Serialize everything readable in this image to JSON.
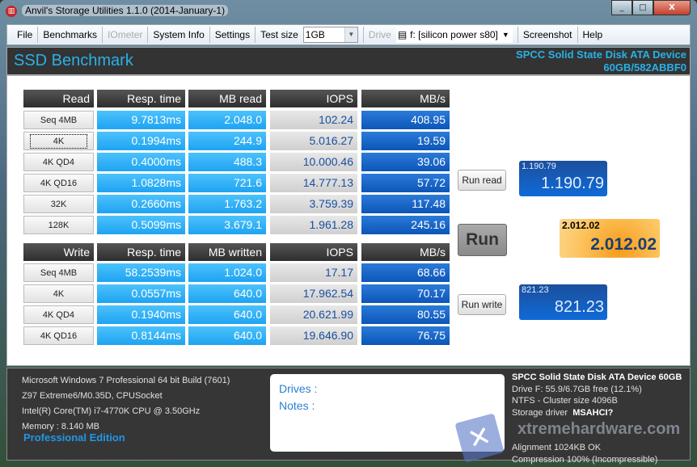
{
  "window": {
    "title": "Anvil's Storage Utilities 1.1.0 (2014-January-1)",
    "minimize": "_",
    "maximize": "□",
    "close": "X"
  },
  "menu": {
    "file": "File",
    "benchmarks": "Benchmarks",
    "iometer": "IOmeter",
    "system_info": "System Info",
    "settings": "Settings",
    "test_size_label": "Test size",
    "test_size_value": "1GB",
    "drive_label": "Drive",
    "drive_value": "f: [silicon power s80]",
    "screenshot": "Screenshot",
    "help": "Help"
  },
  "header": {
    "title": "SSD Benchmark",
    "device_line1": "SPCC Solid State Disk ATA Device",
    "device_line2": "60GB/582ABBF0"
  },
  "read": {
    "headers": [
      "Read",
      "Resp. time",
      "MB read",
      "IOPS",
      "MB/s"
    ],
    "rows": [
      [
        "Seq 4MB",
        "9.7813ms",
        "2.048.0",
        "102.24",
        "408.95"
      ],
      [
        "4K",
        "0.1994ms",
        "244.9",
        "5.016.27",
        "19.59"
      ],
      [
        "4K QD4",
        "0.4000ms",
        "488.3",
        "10.000.46",
        "39.06"
      ],
      [
        "4K QD16",
        "1.0828ms",
        "721.6",
        "14.777.13",
        "57.72"
      ],
      [
        "32K",
        "0.2660ms",
        "1.763.2",
        "3.759.39",
        "117.48"
      ],
      [
        "128K",
        "0.5099ms",
        "3.679.1",
        "1.961.28",
        "245.16"
      ]
    ]
  },
  "write": {
    "headers": [
      "Write",
      "Resp. time",
      "MB written",
      "IOPS",
      "MB/s"
    ],
    "rows": [
      [
        "Seq 4MB",
        "58.2539ms",
        "1.024.0",
        "17.17",
        "68.66"
      ],
      [
        "4K",
        "0.0557ms",
        "640.0",
        "17.962.54",
        "70.17"
      ],
      [
        "4K QD4",
        "0.1940ms",
        "640.0",
        "20.621.99",
        "80.55"
      ],
      [
        "4K QD16",
        "0.8144ms",
        "640.0",
        "19.646.90",
        "76.75"
      ]
    ]
  },
  "scores": {
    "run_read": "Run read",
    "run": "Run",
    "run_write": "Run write",
    "read_small": "1.190.79",
    "read_big": "1.190.79",
    "total_small": "2.012.02",
    "total_big": "2.012.02",
    "write_small": "821.23",
    "write_big": "821.23"
  },
  "footer": {
    "os": "Microsoft Windows 7 Professional  64 bit Build (7601)",
    "board": "Z97 Extreme6/M0.35D, CPUSocket",
    "cpu": "Intel(R) Core(TM) i7-4770K CPU @ 3.50GHz",
    "memory": "Memory : 8.140 MB",
    "edition": "Professional Edition",
    "drives_label": "Drives :",
    "notes_label": "Notes :",
    "device": "SPCC Solid State Disk ATA Device 60GB",
    "drive_free": "Drive F: 55.9/6.7GB free (12.1%)",
    "fs": "NTFS - Cluster size 4096B",
    "driver_label": "Storage driver",
    "driver_value": "MSAHCI?",
    "alignment": "Alignment 1024KB OK",
    "compression": "Compression 100% (Incompressible)"
  },
  "watermark": "xtremehardware.com"
}
